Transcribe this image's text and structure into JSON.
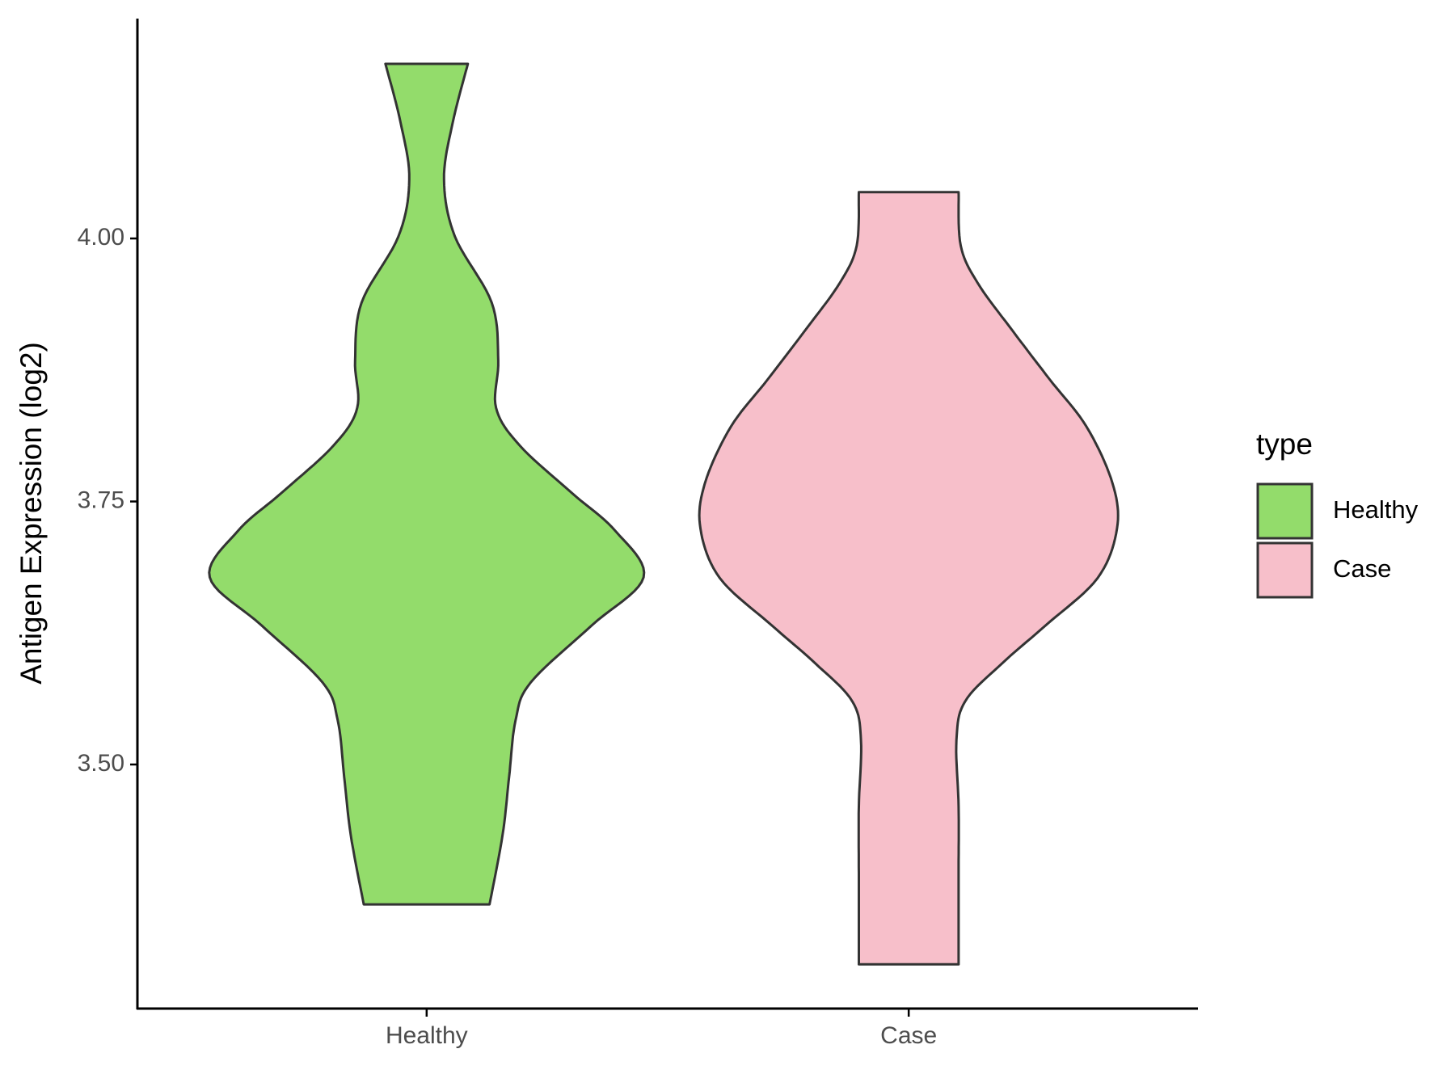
{
  "chart_data": {
    "type": "violin",
    "y_label": "Antigen Expression (log2)",
    "categories": [
      "Healthy",
      "Case"
    ],
    "legend_title": "type",
    "legend_position": "right",
    "ylim": [
      3.268,
      4.209
    ],
    "yticks": [
      {
        "value": 3.5,
        "label": "3.50"
      },
      {
        "value": 3.75,
        "label": "3.75"
      },
      {
        "value": 4.0,
        "label": "4.00"
      }
    ],
    "series": [
      {
        "name": "Healthy",
        "color": "#93dc6b",
        "y": [
          4.166,
          4.11,
          4.056,
          4.002,
          3.939,
          3.884,
          3.839,
          3.803,
          3.758,
          3.722,
          3.678,
          3.632,
          3.578,
          3.542,
          3.488,
          3.433,
          3.367
        ],
        "density": [
          0.19,
          0.12,
          0.08,
          0.13,
          0.3,
          0.33,
          0.32,
          0.43,
          0.67,
          0.87,
          1.0,
          0.76,
          0.48,
          0.41,
          0.38,
          0.35,
          0.29
        ]
      },
      {
        "name": "Case",
        "color": "#f7bfca",
        "y": [
          4.044,
          3.993,
          3.957,
          3.912,
          3.866,
          3.821,
          3.767,
          3.724,
          3.677,
          3.632,
          3.596,
          3.56,
          3.523,
          3.46,
          3.397,
          3.343,
          3.31
        ],
        "density": [
          0.23,
          0.24,
          0.32,
          0.48,
          0.65,
          0.82,
          0.94,
          0.96,
          0.87,
          0.63,
          0.43,
          0.26,
          0.22,
          0.23,
          0.23,
          0.23,
          0.23
        ]
      }
    ]
  }
}
